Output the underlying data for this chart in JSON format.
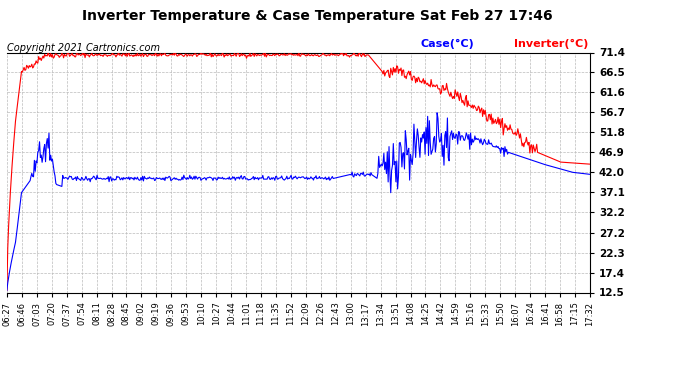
{
  "title": "Inverter Temperature & Case Temperature Sat Feb 27 17:46",
  "copyright": "Copyright 2021 Cartronics.com",
  "legend_case": "Case(°C)",
  "legend_inverter": "Inverter(°C)",
  "background_color": "#ffffff",
  "plot_bg_color": "#ffffff",
  "grid_color": "#bbbbbb",
  "case_color": "blue",
  "inverter_color": "red",
  "yticks": [
    12.5,
    17.4,
    22.3,
    27.2,
    32.2,
    37.1,
    42.0,
    46.9,
    51.8,
    56.7,
    61.6,
    66.5,
    71.4
  ],
  "ymin": 12.5,
  "ymax": 71.4,
  "xtick_labels": [
    "06:27",
    "06:46",
    "07:03",
    "07:20",
    "07:37",
    "07:54",
    "08:11",
    "08:28",
    "08:45",
    "09:02",
    "09:19",
    "09:36",
    "09:53",
    "10:10",
    "10:27",
    "10:44",
    "11:01",
    "11:18",
    "11:35",
    "11:52",
    "12:09",
    "12:26",
    "12:43",
    "13:00",
    "13:17",
    "13:34",
    "13:51",
    "14:08",
    "14:25",
    "14:42",
    "14:59",
    "15:16",
    "15:33",
    "15:50",
    "16:07",
    "16:24",
    "16:41",
    "16:58",
    "17:15",
    "17:32"
  ]
}
